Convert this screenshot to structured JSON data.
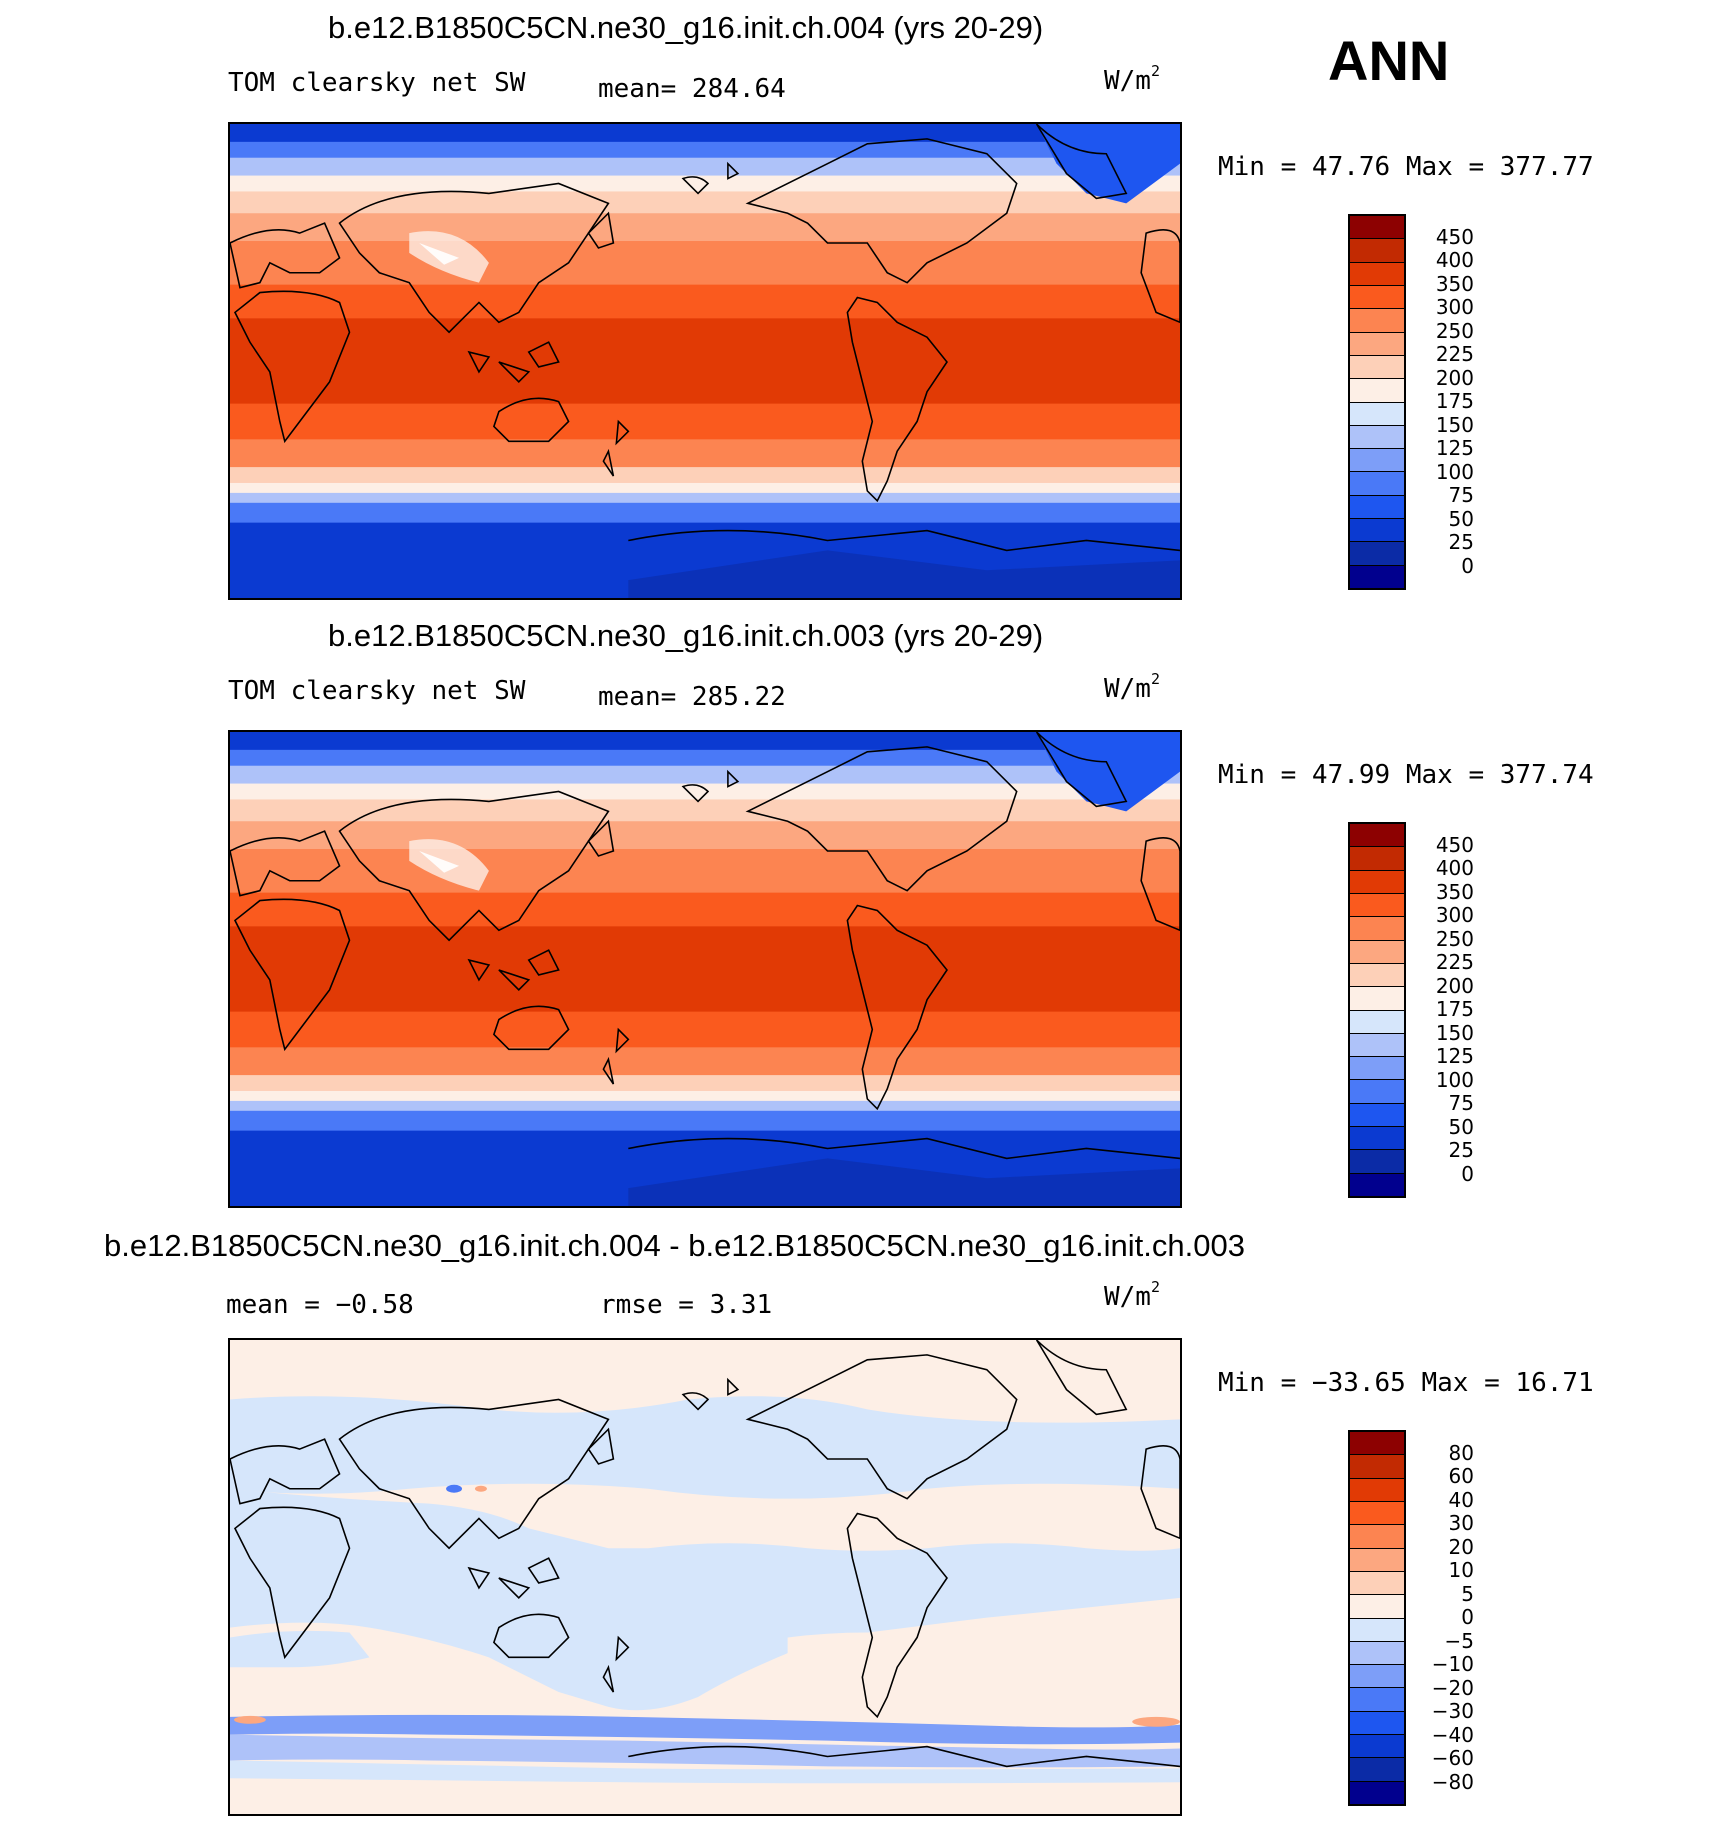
{
  "season": "ANN",
  "colors": {
    "abs_scale": [
      "#01008e",
      "#0b2ba6",
      "#0b3ad1",
      "#1e56f0",
      "#4a79f7",
      "#7d9ef8",
      "#aec2f9",
      "#d6e6fb",
      "#fdefe6",
      "#fdd0b8",
      "#fca780",
      "#fc8451",
      "#fa5a1e",
      "#e13a05",
      "#c22a02",
      "#8d0101"
    ],
    "diff_scale": [
      "#01008e",
      "#0b2ba6",
      "#0b3ad1",
      "#1e56f0",
      "#4a79f7",
      "#7d9ef8",
      "#aec2f9",
      "#d6e6fb",
      "#fdefe6",
      "#fdd0b8",
      "#fca780",
      "#fc8451",
      "#fa5a1e",
      "#e13a05",
      "#c22a02",
      "#8d0101"
    ]
  },
  "panels": [
    {
      "title": "b.e12.B1850C5CN.ne30_g16.init.ch.004 (yrs 20-29)",
      "variable": "TOM clearsky net SW",
      "stat_text": "mean= 284.64",
      "units": "W/m",
      "units_sup": "2",
      "min_max": "Min =   47.76 Max = 377.77",
      "colorbar_labels": [
        "450",
        "400",
        "350",
        "300",
        "250",
        "225",
        "200",
        "175",
        "150",
        "125",
        "100",
        "75",
        "50",
        "25",
        "0"
      ]
    },
    {
      "title": "b.e12.B1850C5CN.ne30_g16.init.ch.003 (yrs 20-29)",
      "variable": "TOM clearsky net SW",
      "stat_text": "mean= 285.22",
      "units": "W/m",
      "units_sup": "2",
      "min_max": "Min =   47.99 Max = 377.74",
      "colorbar_labels": [
        "450",
        "400",
        "350",
        "300",
        "250",
        "225",
        "200",
        "175",
        "150",
        "125",
        "100",
        "75",
        "50",
        "25",
        "0"
      ]
    },
    {
      "title": "b.e12.B1850C5CN.ne30_g16.init.ch.004 - b.e12.B1850C5CN.ne30_g16.init.ch.003",
      "mean_text": "mean =   −0.58",
      "rmse_text": "rmse =    3.31",
      "units": "W/m",
      "units_sup": "2",
      "min_max": "Min = −33.65 Max =   16.71",
      "colorbar_labels": [
        "80",
        "60",
        "40",
        "30",
        "20",
        "10",
        "5",
        "0",
        "−5",
        "−10",
        "−20",
        "−30",
        "−40",
        "−60",
        "−80"
      ]
    }
  ]
}
